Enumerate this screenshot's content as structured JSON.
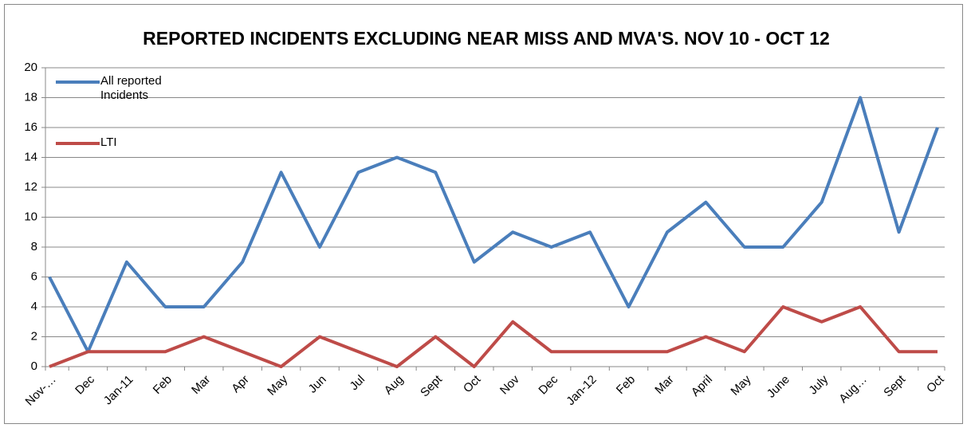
{
  "chart_data": {
    "type": "line",
    "title": "REPORTED INCIDENTS EXCLUDING NEAR MISS AND MVA'S. NOV 10 - OCT 12",
    "categories": [
      "Nov-…",
      "Dec",
      "Jan-11",
      "Feb",
      "Mar",
      "Apr",
      "May",
      "Jun",
      "Jul",
      "Aug",
      "Sept",
      "Oct",
      "Nov",
      "Dec",
      "Jan-12",
      "Feb",
      "Mar",
      "April",
      "May",
      "June",
      "July",
      "Aug…",
      "Sept",
      "Oct"
    ],
    "series": [
      {
        "name": "All reported Incidents",
        "color": "#4a7ebb",
        "values": [
          6,
          1,
          7,
          4,
          4,
          7,
          13,
          8,
          13,
          14,
          13,
          7,
          9,
          8,
          9,
          4,
          9,
          11,
          8,
          8,
          11,
          18,
          9,
          16
        ]
      },
      {
        "name": "LTI",
        "color": "#be4b48",
        "values": [
          0,
          1,
          1,
          1,
          2,
          1,
          0,
          2,
          1,
          0,
          2,
          0,
          3,
          1,
          1,
          1,
          1,
          2,
          1,
          4,
          3,
          4,
          1,
          1
        ]
      }
    ],
    "ylim": [
      0,
      20
    ],
    "yticks": [
      0,
      2,
      4,
      6,
      8,
      10,
      12,
      14,
      16,
      18,
      20
    ],
    "grid": true,
    "legend": "top-left"
  }
}
